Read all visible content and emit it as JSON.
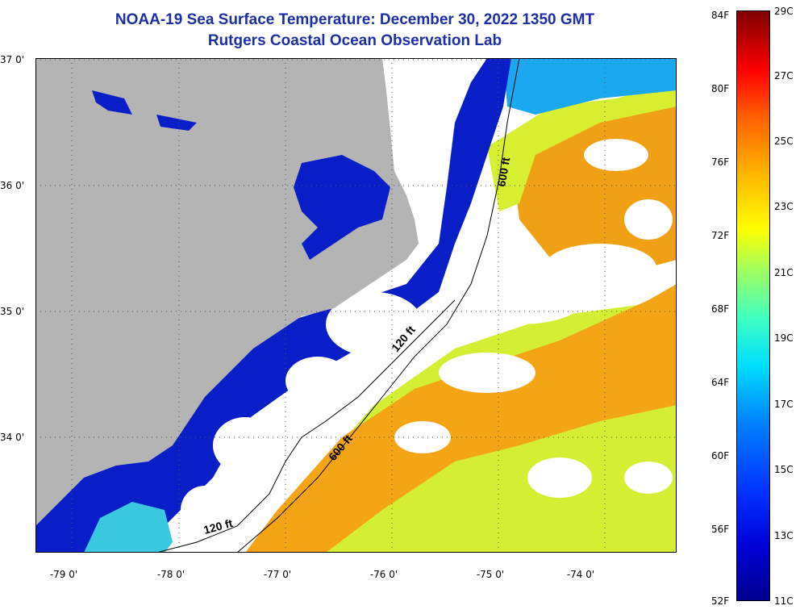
{
  "title": {
    "line1": "NOAA-19 Sea Surface Temperature:  December 30, 2022 1350 GMT",
    "line2": "Rutgers Coastal Ocean Observation Lab"
  },
  "axes": {
    "lon_labels": [
      "-79 0'",
      "-78 0'",
      "-77 0'",
      "-76 0'",
      "-75 0'",
      "-74 0'"
    ],
    "lat_labels": [
      "37 0'",
      "36 0'",
      "35 0'",
      "34 0'"
    ]
  },
  "contours": {
    "label_600_north": "600 ft",
    "label_120_mid": "120 ft",
    "label_600_south": "600 ft",
    "label_120_south": "120 ft"
  },
  "colorbar": {
    "fahrenheit": [
      "84F",
      "80F",
      "76F",
      "72F",
      "68F",
      "64F",
      "60F",
      "56F",
      "52F"
    ],
    "celsius": [
      "29C",
      "27C",
      "25C",
      "23C",
      "21C",
      "19C",
      "17C",
      "15C",
      "13C",
      "11C"
    ]
  },
  "colors": {
    "land": "#b4b4b4",
    "cold": "#0a1ec8",
    "cloud": "#ffffff",
    "warm_orange": "#f5a012",
    "yellow": "#d6f032",
    "title": "#1c2fa8"
  }
}
